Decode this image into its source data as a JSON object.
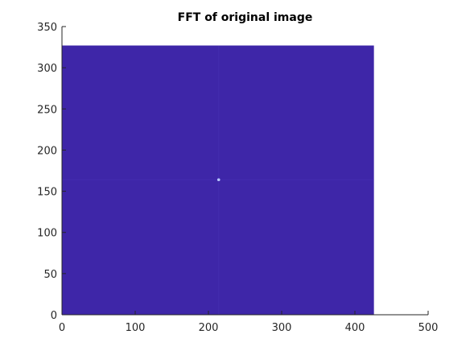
{
  "chart_data": {
    "type": "heatmap",
    "title": "FFT of original image",
    "xlabel": "",
    "ylabel": "",
    "xlim": [
      0,
      500
    ],
    "ylim": [
      0,
      350
    ],
    "x_ticks": [
      0,
      100,
      200,
      300,
      400,
      500
    ],
    "y_ticks": [
      0,
      50,
      100,
      150,
      200,
      250,
      300,
      350
    ],
    "image_extent": {
      "x": [
        0,
        426
      ],
      "y": [
        0,
        327
      ]
    },
    "bright_spot": {
      "x": 214,
      "y": 164
    },
    "grid": false,
    "box": "off",
    "colors": {
      "image_fill": "#3e26a8",
      "spot": "#b7c7ff",
      "axis": "#262626"
    }
  }
}
